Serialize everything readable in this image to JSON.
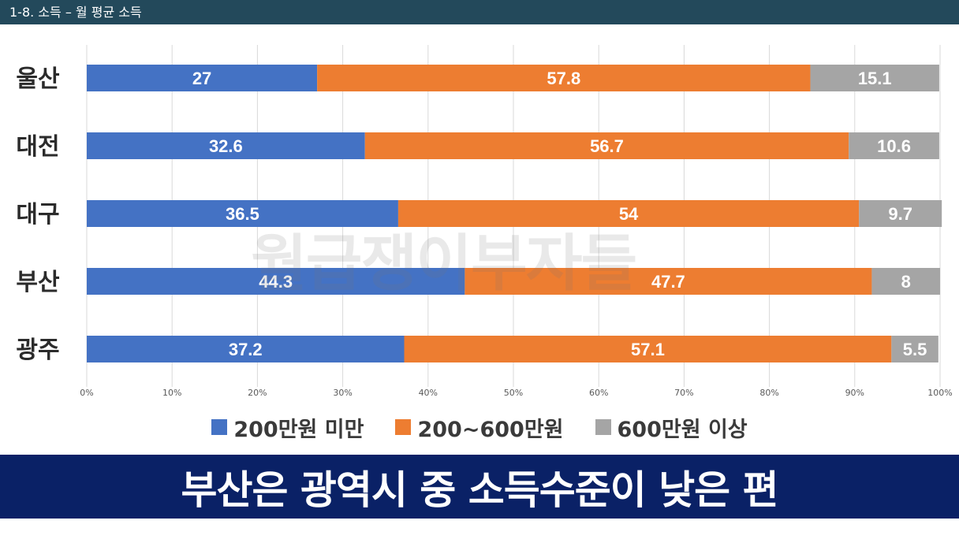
{
  "header": {
    "title": "1-8. 소득 – 월 평균 소득"
  },
  "watermark": "월급쟁이부자들",
  "caption": "부산은 광역시 중 소득수준이 낮은 편",
  "colors": {
    "header_bg": "#23495b",
    "banner_bg": "#0a2166"
  },
  "chart_data": {
    "type": "bar",
    "orientation": "horizontal",
    "stacked": true,
    "percent": true,
    "categories": [
      "울산",
      "대전",
      "대구",
      "부산",
      "광주"
    ],
    "series": [
      {
        "name": "200만원 미만",
        "color": "#4472c4",
        "values": [
          27,
          32.6,
          36.5,
          44.3,
          37.2
        ]
      },
      {
        "name": "200~600만원",
        "color": "#ed7d31",
        "values": [
          57.8,
          56.7,
          54,
          47.7,
          57.1
        ]
      },
      {
        "name": "600만원 이상",
        "color": "#a5a5a5",
        "values": [
          15.1,
          10.6,
          9.7,
          8,
          5.5
        ]
      }
    ],
    "x_ticks": [
      "0%",
      "10%",
      "20%",
      "30%",
      "40%",
      "50%",
      "60%",
      "70%",
      "80%",
      "90%",
      "100%"
    ],
    "xlim": [
      0,
      100
    ],
    "grid": true,
    "legend_position": "bottom"
  }
}
